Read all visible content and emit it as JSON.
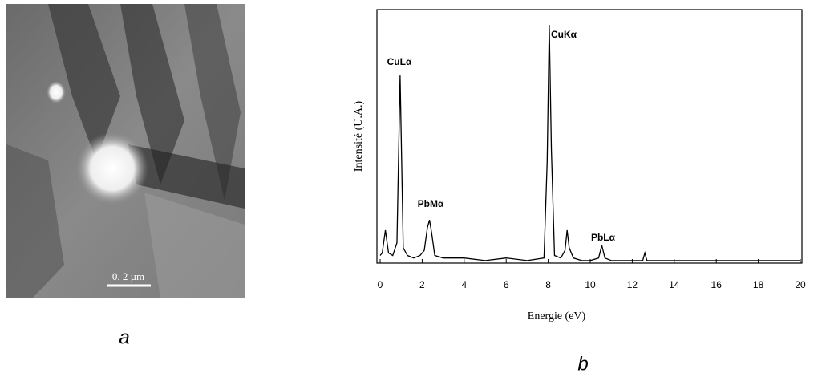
{
  "panels": {
    "a": {
      "label": "a",
      "scale_bar": "0. 2 µm"
    },
    "b": {
      "label": "b"
    }
  },
  "chart_data": {
    "type": "line",
    "color": "#000000",
    "xlabel": "Energie (eV)",
    "ylabel": "Intensité (U.A.)",
    "x": [
      0,
      0.1,
      0.25,
      0.4,
      0.6,
      0.8,
      0.95,
      1.1,
      1.3,
      1.6,
      1.9,
      2.1,
      2.25,
      2.35,
      2.45,
      2.6,
      3,
      4,
      5,
      6,
      7,
      7.8,
      7.95,
      8.05,
      8.15,
      8.3,
      8.6,
      8.8,
      8.9,
      9.0,
      9.2,
      9.6,
      10,
      10.4,
      10.55,
      10.7,
      11,
      12,
      12.5,
      12.6,
      12.7,
      13,
      14,
      15,
      16,
      17,
      18,
      19,
      20
    ],
    "values": [
      3,
      4,
      13,
      4,
      3,
      8,
      74,
      6,
      3,
      2,
      3,
      5,
      14,
      17,
      12,
      3,
      2,
      2,
      1,
      2,
      1,
      2,
      40,
      94,
      45,
      3,
      2,
      5,
      13,
      6,
      2,
      1,
      1,
      2,
      7,
      2,
      1,
      1,
      1,
      4,
      1,
      1,
      1,
      1,
      1,
      1,
      1,
      1,
      1
    ],
    "annotations": [
      "CuLα",
      "PbMα",
      "CuKα",
      "PbLα"
    ],
    "xlim": [
      0,
      20
    ],
    "xticks": [
      0,
      2,
      4,
      6,
      8,
      10,
      12,
      14,
      16,
      18,
      20
    ],
    "ylim": [
      0,
      100
    ]
  }
}
